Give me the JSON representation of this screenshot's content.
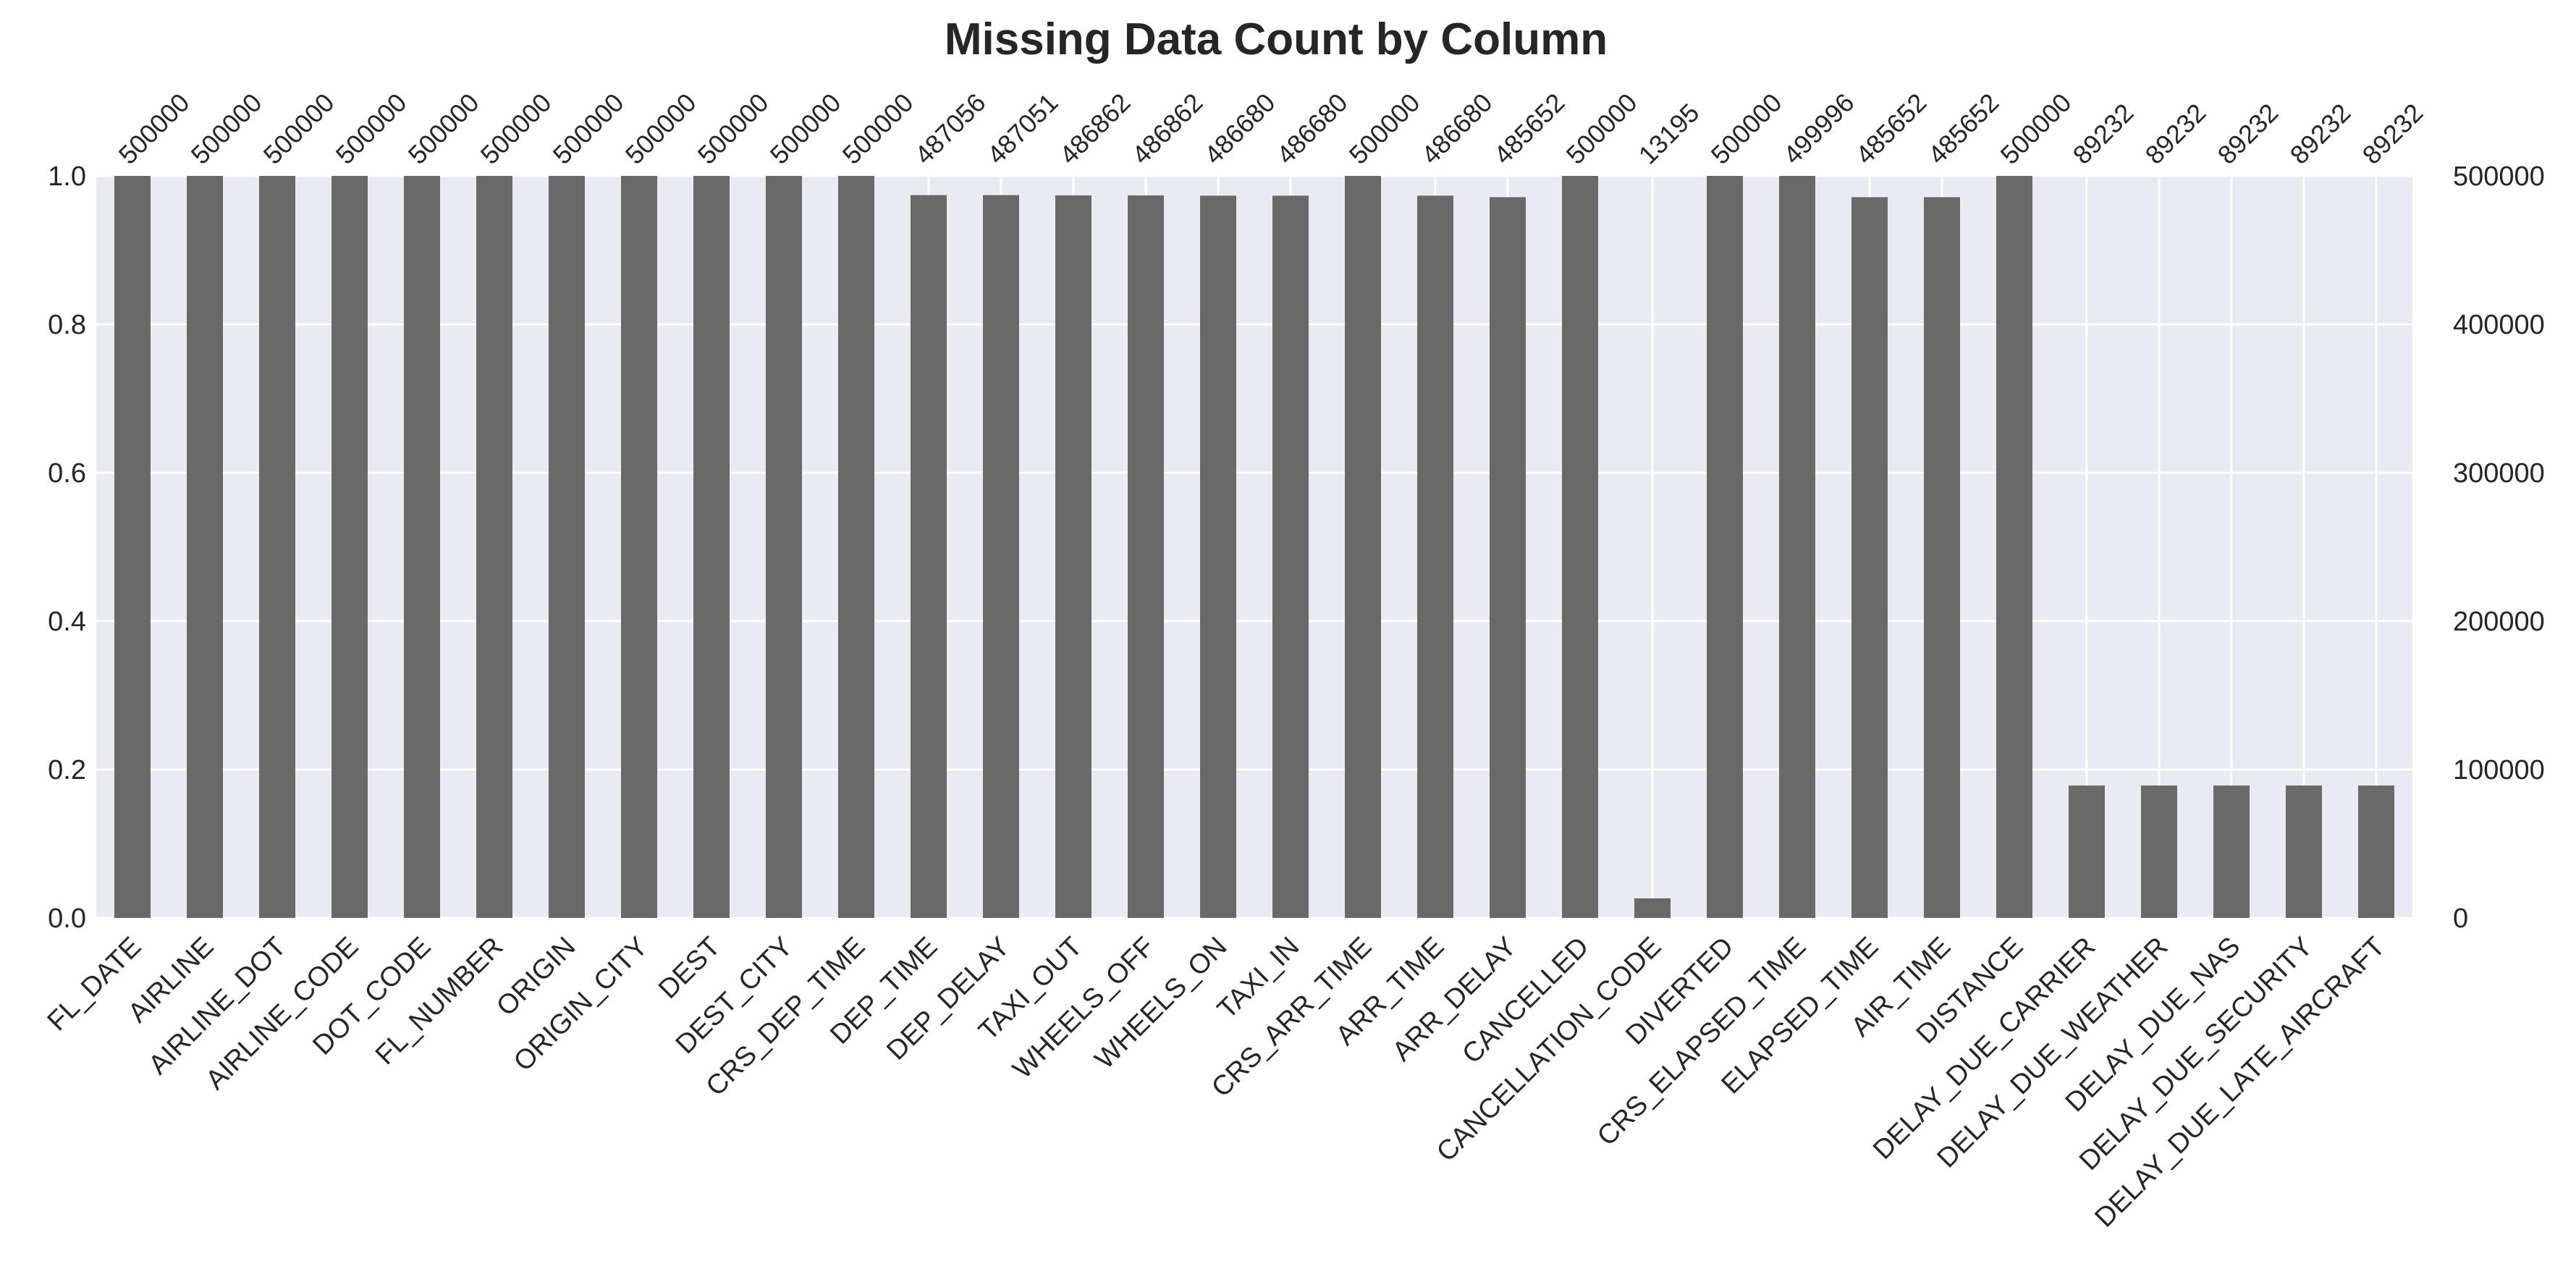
{
  "chart_data": {
    "type": "bar",
    "title": "Missing Data Count by Column",
    "xlabel": "",
    "ylabel": "",
    "ylim": [
      0,
      1
    ],
    "total_rows": 500000,
    "left_axis_ticks": [
      "0.0",
      "0.2",
      "0.4",
      "0.6",
      "0.8",
      "1.0"
    ],
    "right_axis_ticks": [
      "0",
      "100000",
      "200000",
      "300000",
      "400000",
      "500000"
    ],
    "grid": true,
    "bar_color": "#696969",
    "background_color": "#eaeaf2",
    "categories": [
      "FL_DATE",
      "AIRLINE",
      "AIRLINE_DOT",
      "AIRLINE_CODE",
      "DOT_CODE",
      "FL_NUMBER",
      "ORIGIN",
      "ORIGIN_CITY",
      "DEST",
      "DEST_CITY",
      "CRS_DEP_TIME",
      "DEP_TIME",
      "DEP_DELAY",
      "TAXI_OUT",
      "WHEELS_OFF",
      "WHEELS_ON",
      "TAXI_IN",
      "CRS_ARR_TIME",
      "ARR_TIME",
      "ARR_DELAY",
      "CANCELLED",
      "CANCELLATION_CODE",
      "DIVERTED",
      "CRS_ELAPSED_TIME",
      "ELAPSED_TIME",
      "AIR_TIME",
      "DISTANCE",
      "DELAY_DUE_CARRIER",
      "DELAY_DUE_WEATHER",
      "DELAY_DUE_NAS",
      "DELAY_DUE_SECURITY",
      "DELAY_DUE_LATE_AIRCRAFT"
    ],
    "values": [
      500000,
      500000,
      500000,
      500000,
      500000,
      500000,
      500000,
      500000,
      500000,
      500000,
      500000,
      487056,
      487051,
      486862,
      486862,
      486680,
      486680,
      500000,
      486680,
      485652,
      500000,
      13195,
      500000,
      499996,
      485652,
      485652,
      500000,
      89232,
      89232,
      89232,
      89232,
      89232
    ]
  }
}
